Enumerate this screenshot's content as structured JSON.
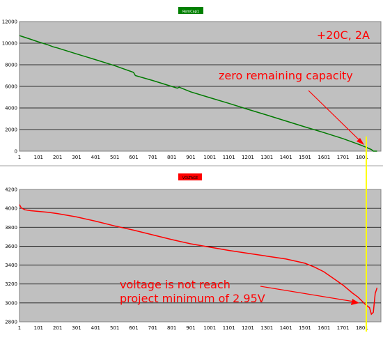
{
  "colors": {
    "plot_bg": "#c0c0c0",
    "grid": "#000000",
    "capacity_line": "#007a00",
    "capacity_legend_bg": "#008000",
    "voltage_line": "#ff0000",
    "voltage_legend_bg": "#ff0000",
    "annotation": "#ff0000",
    "marker_line": "#ffff00"
  },
  "chart_data": [
    {
      "type": "line",
      "legend": "RemCap1",
      "legend_placement": "top-center",
      "grid": true,
      "x_tick_labels": [
        "1",
        "101",
        "201",
        "301",
        "401",
        "501",
        "601",
        "701",
        "801",
        "901",
        "1001",
        "1101",
        "1201",
        "1301",
        "1401",
        "1501",
        "1601",
        "1701",
        "1801"
      ],
      "xlim": [
        1,
        1900
      ],
      "ylim": [
        0,
        12000
      ],
      "y_tick_labels": [
        "0",
        "2000",
        "4000",
        "6000",
        "8000",
        "10000",
        "12000"
      ],
      "series": [
        {
          "name": "RemCap1",
          "x": [
            1,
            50,
            100,
            150,
            180,
            200,
            300,
            400,
            500,
            600,
            610,
            700,
            800,
            830,
            840,
            900,
            1000,
            1100,
            1200,
            1300,
            1400,
            1500,
            1600,
            1700,
            1800,
            1850,
            1860,
            1880
          ],
          "values": [
            10700,
            10420,
            10120,
            9850,
            9650,
            9560,
            9010,
            8480,
            7920,
            7300,
            7000,
            6550,
            6000,
            5830,
            5920,
            5500,
            4960,
            4430,
            3880,
            3350,
            2800,
            2250,
            1720,
            1170,
            520,
            150,
            0,
            0
          ]
        }
      ],
      "annotations": [
        {
          "text": "+20C, 2A"
        },
        {
          "text": "zero remaining capacity"
        }
      ]
    },
    {
      "type": "line",
      "legend": "VOLTAGE",
      "legend_placement": "top-center",
      "grid": true,
      "x_tick_labels": [
        "1",
        "101",
        "201",
        "301",
        "401",
        "501",
        "601",
        "701",
        "801",
        "901",
        "1001",
        "1101",
        "1201",
        "1301",
        "1401",
        "1501",
        "1601",
        "1701",
        "1801"
      ],
      "xlim": [
        1,
        1900
      ],
      "ylim": [
        2800,
        4200
      ],
      "y_tick_labels": [
        "2800",
        "3000",
        "3200",
        "3400",
        "3600",
        "3800",
        "4000",
        "4200"
      ],
      "series": [
        {
          "name": "VOLTAGE",
          "x": [
            1,
            10,
            30,
            60,
            100,
            150,
            200,
            300,
            400,
            500,
            600,
            700,
            800,
            900,
            1000,
            1100,
            1200,
            1300,
            1400,
            1500,
            1550,
            1600,
            1650,
            1700,
            1750,
            1780,
            1800,
            1820,
            1840,
            1850,
            1860,
            1870,
            1880
          ],
          "values": [
            4040,
            4005,
            3985,
            3975,
            3968,
            3958,
            3945,
            3910,
            3865,
            3815,
            3770,
            3720,
            3670,
            3625,
            3590,
            3555,
            3525,
            3495,
            3465,
            3420,
            3380,
            3330,
            3260,
            3190,
            3105,
            3060,
            3020,
            2980,
            2950,
            2880,
            2900,
            3100,
            3160
          ]
        }
      ],
      "annotations": [
        {
          "text": "voltage is not reach"
        },
        {
          "text": "project minimum of 2.95V"
        }
      ]
    }
  ]
}
